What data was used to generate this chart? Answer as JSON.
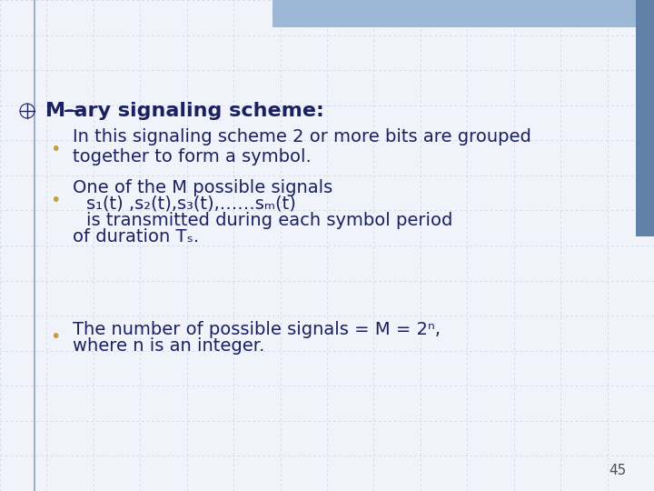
{
  "bg_color": "#f0f4fa",
  "grid_color": "#c0cce0",
  "header_bar_color": "#9db8d4",
  "right_bar_color": "#6080a8",
  "title_color": "#1a2060",
  "bullet_color": "#c8a030",
  "text_color": "#1a2060",
  "page_num_color": "#505050",
  "title": "M-ary signaling scheme:",
  "bullet1_line1": "In this signaling scheme 2 or more bits are grouped",
  "bullet1_line2": "together to form a symbol.",
  "bullet2_line1": "One of the M possible signals",
  "bullet2_line2": "s₁(t) ,s₂(t),s₃(t),……sₘ(t)",
  "bullet2_line3": "is transmitted during each symbol period",
  "bullet2_line4": "of duration Tₛ.",
  "bullet3_line1": "The number of possible signals = M = 2ⁿ,",
  "bullet3_line2": "where n is an integer.",
  "page_number": "45",
  "title_fontsize": 16,
  "text_fontsize": 14
}
